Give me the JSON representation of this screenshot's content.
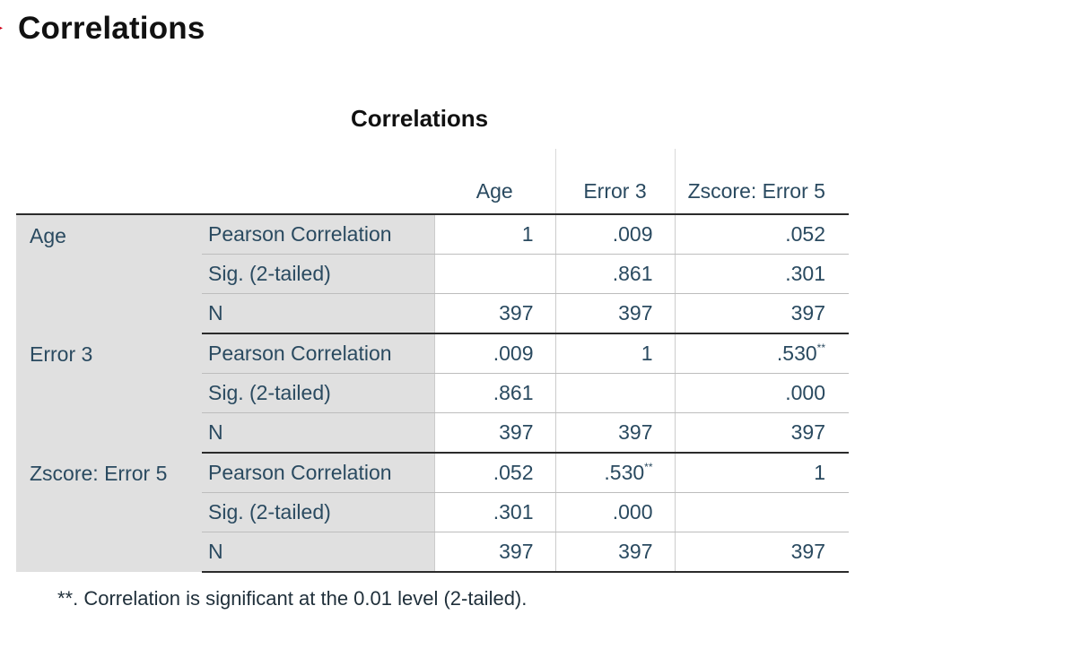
{
  "heading": "Correlations",
  "table": {
    "title": "Correlations",
    "columns": [
      "Age",
      "Error 3",
      "Zscore:  Error 5"
    ],
    "stat_labels": [
      "Pearson Correlation",
      "Sig. (2-tailed)",
      "N"
    ],
    "rows": [
      {
        "label": "Age",
        "pearson": [
          "1",
          ".009",
          ".052"
        ],
        "pearson_sup": [
          "",
          "",
          ""
        ],
        "sig": [
          "",
          ".861",
          ".301"
        ],
        "n": [
          "397",
          "397",
          "397"
        ]
      },
      {
        "label": "Error 3",
        "pearson": [
          ".009",
          "1",
          ".530"
        ],
        "pearson_sup": [
          "",
          "",
          "**"
        ],
        "sig": [
          ".861",
          "",
          ".000"
        ],
        "n": [
          "397",
          "397",
          "397"
        ]
      },
      {
        "label": "Zscore:  Error 5",
        "pearson": [
          ".052",
          ".530",
          "1"
        ],
        "pearson_sup": [
          "",
          "**",
          ""
        ],
        "sig": [
          ".301",
          ".000",
          ""
        ],
        "n": [
          "397",
          "397",
          "397"
        ]
      }
    ],
    "footnote": "**. Correlation is significant at the 0.01 level (2-tailed)."
  }
}
